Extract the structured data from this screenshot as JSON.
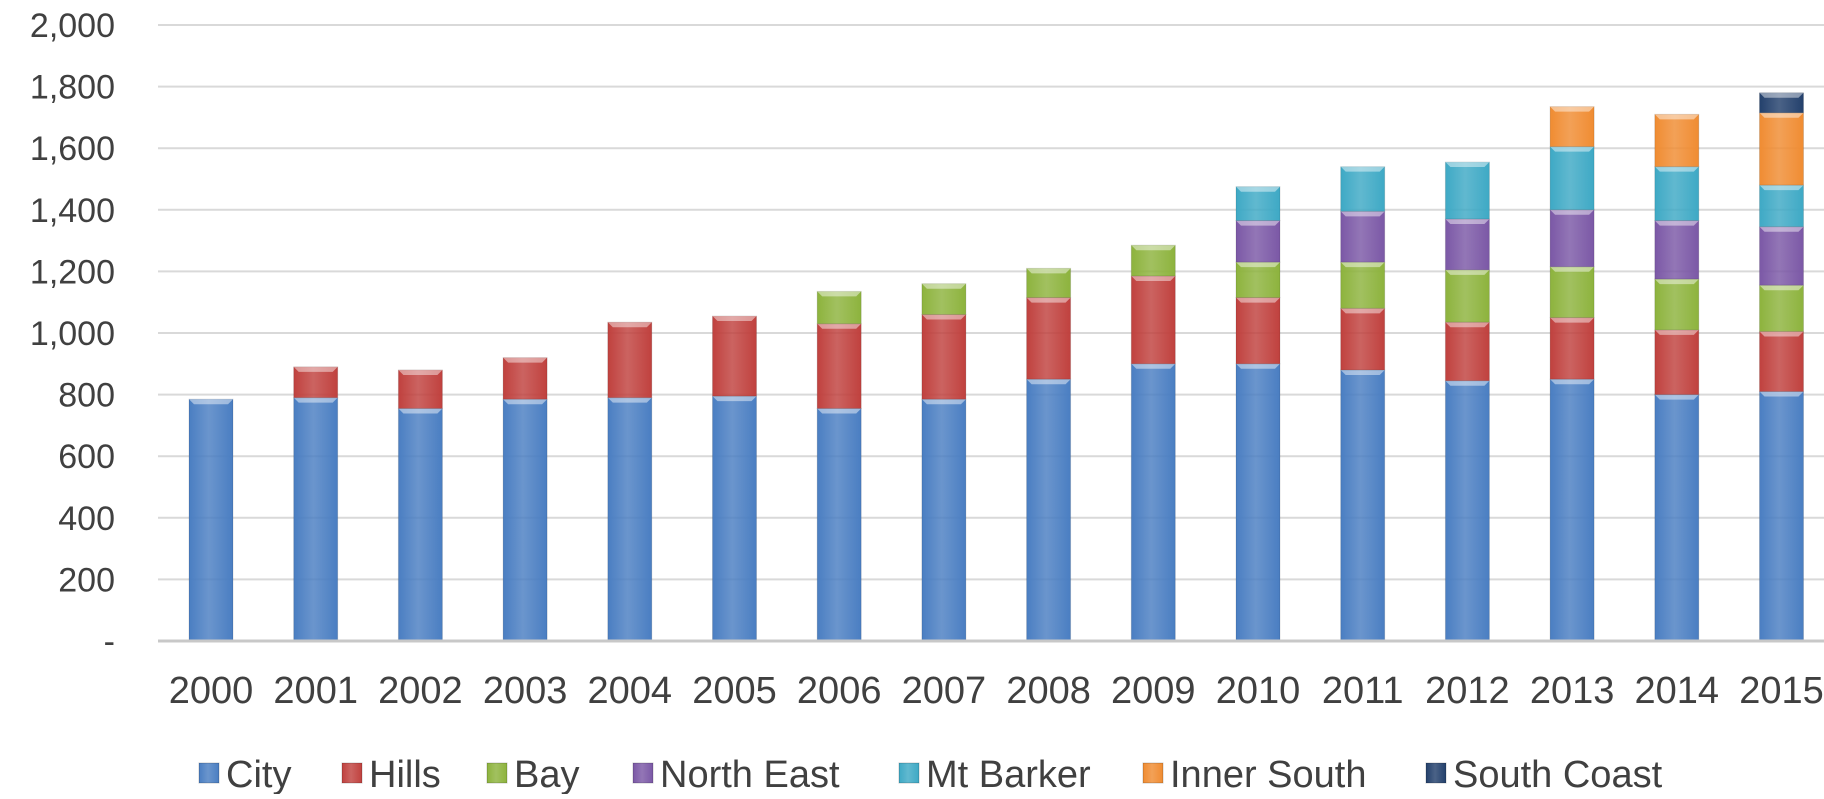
{
  "chart_data": {
    "type": "bar",
    "stacked": true,
    "title": "",
    "xlabel": "",
    "ylabel": "",
    "ylim": [
      0,
      2000
    ],
    "y_ticks": [
      0,
      200,
      400,
      600,
      800,
      1000,
      1200,
      1400,
      1600,
      1800,
      2000
    ],
    "y_tick_labels": [
      "-",
      "200",
      "400",
      "600",
      "800",
      "1,000",
      "1,200",
      "1,400",
      "1,600",
      "1,800",
      "2,000"
    ],
    "grid": true,
    "legend_position": "bottom",
    "categories": [
      "2000",
      "2001",
      "2002",
      "2003",
      "2004",
      "2005",
      "2006",
      "2007",
      "2008",
      "2009",
      "2010",
      "2011",
      "2012",
      "2013",
      "2014",
      "2015"
    ],
    "series": [
      {
        "name": "City",
        "color": "#4A7EC2",
        "values": [
          785,
          790,
          755,
          785,
          790,
          795,
          755,
          785,
          850,
          900,
          900,
          880,
          845,
          850,
          800,
          810
        ]
      },
      {
        "name": "Hills",
        "color": "#C0413E",
        "values": [
          0,
          100,
          125,
          135,
          245,
          260,
          275,
          275,
          265,
          285,
          215,
          200,
          190,
          200,
          210,
          195
        ]
      },
      {
        "name": "Bay",
        "color": "#8DB33D",
        "values": [
          0,
          0,
          0,
          0,
          0,
          0,
          105,
          100,
          95,
          100,
          115,
          150,
          170,
          165,
          165,
          150
        ]
      },
      {
        "name": "North East",
        "color": "#7B58A6",
        "values": [
          0,
          0,
          0,
          0,
          0,
          0,
          0,
          0,
          0,
          0,
          135,
          165,
          165,
          185,
          190,
          190
        ]
      },
      {
        "name": "Mt Barker",
        "color": "#3EA9C5",
        "values": [
          0,
          0,
          0,
          0,
          0,
          0,
          0,
          0,
          0,
          0,
          110,
          145,
          185,
          205,
          175,
          135
        ]
      },
      {
        "name": "Inner South",
        "color": "#F08C32",
        "values": [
          0,
          0,
          0,
          0,
          0,
          0,
          0,
          0,
          0,
          0,
          0,
          0,
          0,
          130,
          170,
          235
        ]
      },
      {
        "name": "South Coast",
        "color": "#23406C",
        "values": [
          0,
          0,
          0,
          0,
          0,
          0,
          0,
          0,
          0,
          0,
          0,
          0,
          0,
          0,
          0,
          65
        ]
      }
    ]
  }
}
